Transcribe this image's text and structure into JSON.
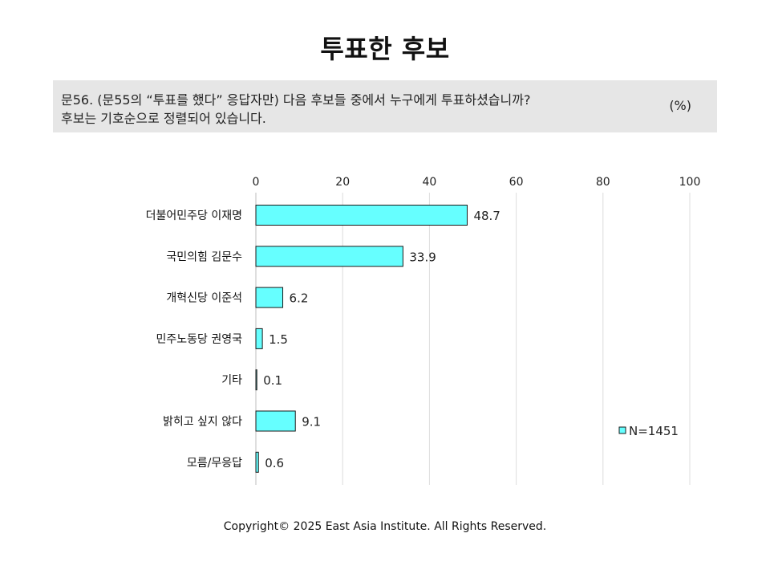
{
  "title": "투표한 후보",
  "question": {
    "line1": "문56. (문55의 “투표를 했다” 응답자만) 다음 후보들 중에서 누구에게 투표하셨습니까?",
    "line2": "후보는 기호순으로 정렬되어 있습니다.",
    "unit": "(%)"
  },
  "chart_data": {
    "type": "bar",
    "orientation": "horizontal",
    "categories": [
      "더불어민주당 이재명",
      "국민의힘 김문수",
      "개혁신당 이준석",
      "민주노동당 권영국",
      "기타",
      "밝히고 싶지 않다",
      "모름/무응답"
    ],
    "values": [
      48.7,
      33.9,
      6.2,
      1.5,
      0.1,
      9.1,
      0.6
    ],
    "value_labels": [
      "48.7",
      "33.9",
      "6.2",
      "1.5",
      "0.1",
      "9.1",
      "0.6"
    ],
    "xlim": [
      0,
      100
    ],
    "ticks": [
      0,
      20,
      40,
      60,
      80,
      100
    ],
    "tick_labels": [
      "0",
      "20",
      "40",
      "60",
      "80",
      "100"
    ],
    "axis_position": "top",
    "grid": true,
    "legend": {
      "label": "N=1451",
      "placement": "bottom-right"
    },
    "colors": {
      "bar": "#66FFFF",
      "bar_stroke": "#1a1a1a",
      "grid": "#dcdcdc"
    }
  },
  "footer": {
    "copyright": "Copyright© 2025 East Asia Institute. All Rights Reserved."
  }
}
